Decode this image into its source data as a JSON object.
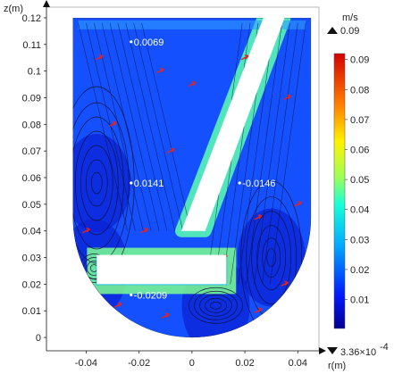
{
  "chart_data": {
    "type": "heatmap",
    "xlabel": "r(m)",
    "ylabel": "z(m)",
    "xlim": [
      -0.055,
      0.048
    ],
    "ylim": [
      -0.005,
      0.124
    ],
    "x_ticks": [
      -0.04,
      -0.02,
      0,
      0.02,
      0.04
    ],
    "x_tick_labels": [
      "-0.04",
      "-0.02",
      "0",
      "0.02",
      "0.04"
    ],
    "y_ticks": [
      0,
      0.01,
      0.02,
      0.03,
      0.04,
      0.05,
      0.06,
      0.07,
      0.08,
      0.09,
      0.1,
      0.11,
      0.12
    ],
    "y_tick_labels": [
      "0",
      "0.01",
      "0.02",
      "0.03",
      "0.04",
      "0.05",
      "0.06",
      "0.07",
      "0.08",
      "0.09",
      "0.1",
      "0.11",
      "0.12"
    ],
    "colorbar": {
      "unit": "m/s",
      "max_label": "0.09",
      "min_label": "3.36×10",
      "min_exponent": "-4",
      "tick_values": [
        0.01,
        0.02,
        0.03,
        0.04,
        0.05,
        0.06,
        0.07,
        0.08,
        0.09
      ],
      "tick_labels": [
        "0.01",
        "0.02",
        "0.03",
        "0.04",
        "0.05",
        "0.06",
        "0.07",
        "0.08",
        "0.09"
      ],
      "range": [
        0.000336,
        0.092
      ]
    },
    "annotations": [
      {
        "x": -0.023,
        "y": 0.111,
        "label": "0.0069"
      },
      {
        "x": -0.023,
        "y": 0.058,
        "label": "0.0141"
      },
      {
        "x": 0.018,
        "y": 0.058,
        "label": "-0.0146"
      },
      {
        "x": -0.023,
        "y": 0.016,
        "label": "-0.0209"
      }
    ],
    "vortex_centers": [
      {
        "x": -0.036,
        "y": 0.058
      },
      {
        "x": -0.037,
        "y": 0.026
      },
      {
        "x": 0.03,
        "y": 0.03
      },
      {
        "x": 0.009,
        "y": 0.012
      }
    ],
    "colors": {
      "field_low": "#0a1fd8",
      "field_mid": "#1a6bff",
      "field_high": "#3fe0c8",
      "arrow": "#e8211b",
      "streamline": "#0b1030"
    }
  }
}
